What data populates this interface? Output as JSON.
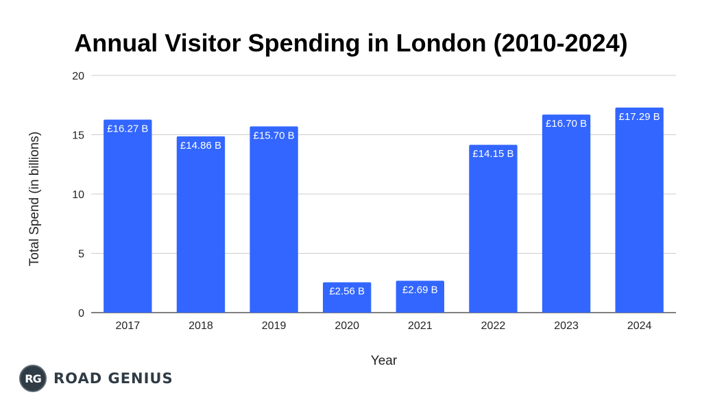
{
  "chart_data": {
    "type": "bar",
    "title": "Annual Visitor Spending in London (2010-2024)",
    "xlabel": "Year",
    "ylabel": "Total Spend (in billions)",
    "categories": [
      "2017",
      "2018",
      "2019",
      "2020",
      "2021",
      "2022",
      "2023",
      "2024"
    ],
    "values": [
      16.27,
      14.86,
      15.7,
      2.56,
      2.69,
      14.15,
      16.7,
      17.29
    ],
    "data_labels": [
      "£16.27 B",
      "£14.86 B",
      "£15.70 B",
      "£2.56 B",
      "£2.69 B",
      "£14.15 B",
      "£16.70 B",
      "£17.29 B"
    ],
    "ylim": [
      0,
      20
    ],
    "yticks": [
      0,
      5,
      10,
      15,
      20
    ],
    "grid": true,
    "bar_color": "#3366ff",
    "legend": "none"
  },
  "brand": {
    "logo_text": "RG",
    "name": "ROAD GENIUS"
  }
}
